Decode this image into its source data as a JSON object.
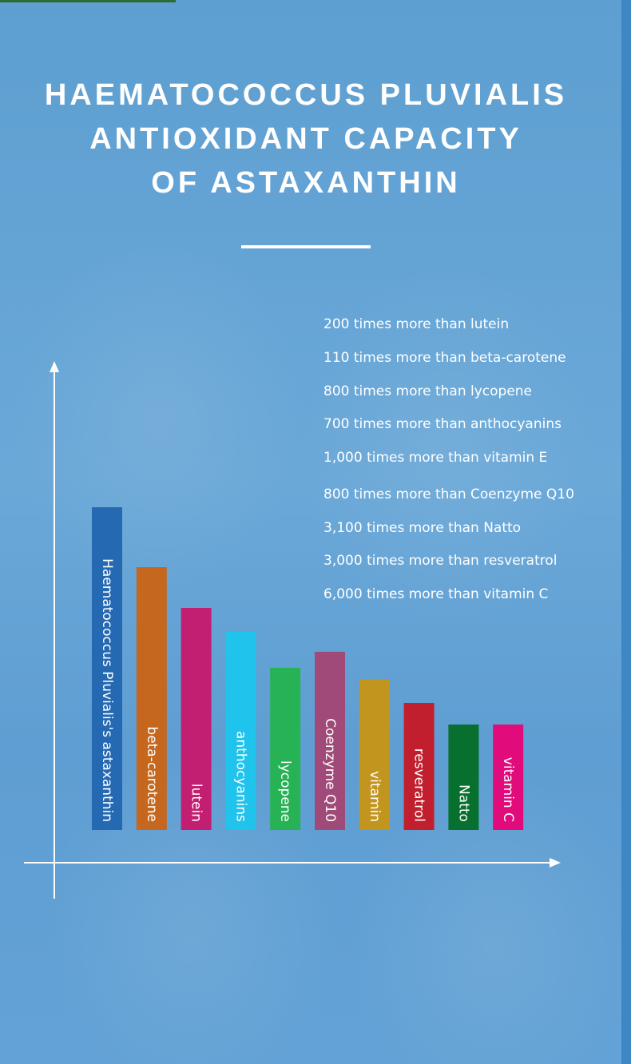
{
  "title_lines": [
    "HAEMATOCOCCUS PLUVIALIS",
    "ANTIOXIDANT CAPACITY",
    "OF ASTAXANTHIN"
  ],
  "facts": [
    "200 times more than lutein",
    "110 times more than beta-carotene",
    "800 times more than lycopene",
    "700 times more than anthocyanins",
    "1,000 times more than vitamin E",
    "800 times more than Coenzyme Q10",
    "3,100 times more than Natto",
    "3,000 times more than resveratrol",
    "6,000 times more than vitamin C"
  ],
  "chart_data": {
    "type": "bar",
    "title": "",
    "xlabel": "",
    "ylabel": "",
    "grid": false,
    "ylim": [
      0,
      440
    ],
    "categories": [
      "Haematococcus Pluvialis's astaxanthin",
      "beta-carotene",
      "lutein",
      "anthocyanins",
      "lycopene",
      "Coenzyme Q10",
      "vitamin",
      "resveratrol",
      "Natto",
      "vitamin C"
    ],
    "values": [
      404,
      329,
      278,
      249,
      203,
      223,
      188,
      159,
      132,
      132
    ],
    "colors": [
      "#2569b3",
      "#c5671f",
      "#c31f72",
      "#1fc3ec",
      "#26b255",
      "#9f4a78",
      "#c2951f",
      "#c21f2e",
      "#08702f",
      "#e20b7c"
    ]
  }
}
